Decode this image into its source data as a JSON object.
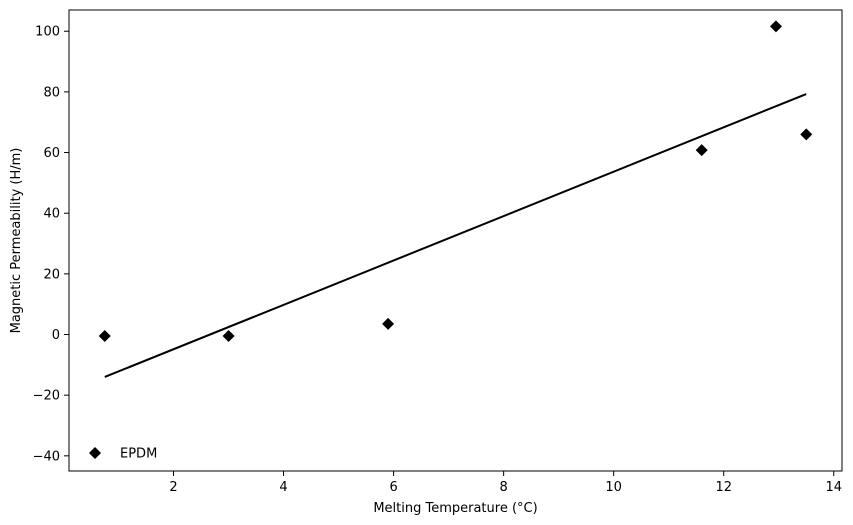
{
  "chart_data": {
    "type": "scatter",
    "xlabel": "Melting Temperature (°C)",
    "ylabel": "Magnetic Permeability (H/m)",
    "xlim": [
      0.1,
      14.15
    ],
    "ylim": [
      -45,
      107
    ],
    "x_ticks": [
      2,
      4,
      6,
      8,
      10,
      12,
      14
    ],
    "y_ticks": [
      -40,
      -20,
      0,
      20,
      40,
      60,
      80,
      100
    ],
    "x_tick_labels": [
      "2",
      "4",
      "6",
      "8",
      "10",
      "12",
      "14"
    ],
    "y_tick_labels": [
      "−40",
      "−20",
      "0",
      "20",
      "40",
      "60",
      "80",
      "100"
    ],
    "grid": false,
    "legend": {
      "position": "bottom-left",
      "entries": [
        "EPDM"
      ]
    },
    "series": [
      {
        "name": "EPDM",
        "marker": "diamond",
        "color": "#000000",
        "points": [
          {
            "x": 0.75,
            "y": -0.5
          },
          {
            "x": 3.0,
            "y": -0.5
          },
          {
            "x": 5.9,
            "y": 3.5
          },
          {
            "x": 11.6,
            "y": 60.8
          },
          {
            "x": 12.95,
            "y": 101.6
          },
          {
            "x": 13.5,
            "y": 66.0
          }
        ]
      }
    ],
    "trendline": {
      "type": "linear",
      "color": "#000000",
      "x_start": 0.75,
      "y_start": -14.0,
      "x_end": 13.5,
      "y_end": 79.3
    }
  }
}
